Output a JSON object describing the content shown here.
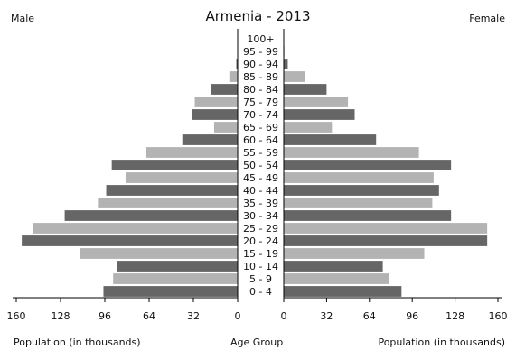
{
  "chart_data": {
    "type": "bar",
    "title": "Armenia - 2013",
    "left_series_name": "Male",
    "right_series_name": "Female",
    "xlabel_left": "Population (in thousands)",
    "xlabel_center": "Age Group",
    "xlabel_right": "Population (in thousands)",
    "xlim": [
      0,
      160
    ],
    "xticks_left": [
      "160",
      "128",
      "96",
      "64",
      "32",
      "0"
    ],
    "xticks_right": [
      "0",
      "32",
      "64",
      "96",
      "128",
      "160"
    ],
    "grid": false,
    "categories": [
      "0 - 4",
      "5 - 9",
      "10 - 14",
      "15 - 19",
      "20 - 24",
      "25 - 29",
      "30 - 34",
      "35 - 39",
      "40 - 44",
      "45 - 49",
      "50 - 54",
      "55 - 59",
      "60 - 64",
      "65 - 69",
      "70 - 74",
      "75 - 79",
      "80 - 84",
      "85 - 89",
      "90 - 94",
      "95 - 99",
      "100+"
    ],
    "series": [
      {
        "name": "Male",
        "values": [
          97,
          90,
          87,
          114,
          156,
          148,
          125,
          101,
          95,
          81,
          91,
          66,
          40,
          17,
          33,
          31,
          19,
          6,
          1,
          0.3,
          0.1
        ]
      },
      {
        "name": "Female",
        "values": [
          88,
          79,
          74,
          105,
          152,
          152,
          125,
          111,
          116,
          112,
          125,
          101,
          69,
          36,
          53,
          48,
          32,
          16,
          3,
          0.5,
          0.2
        ]
      }
    ],
    "colors": {
      "dark": "#666666",
      "light": "#b3b3b3",
      "axis": "#000000"
    }
  }
}
